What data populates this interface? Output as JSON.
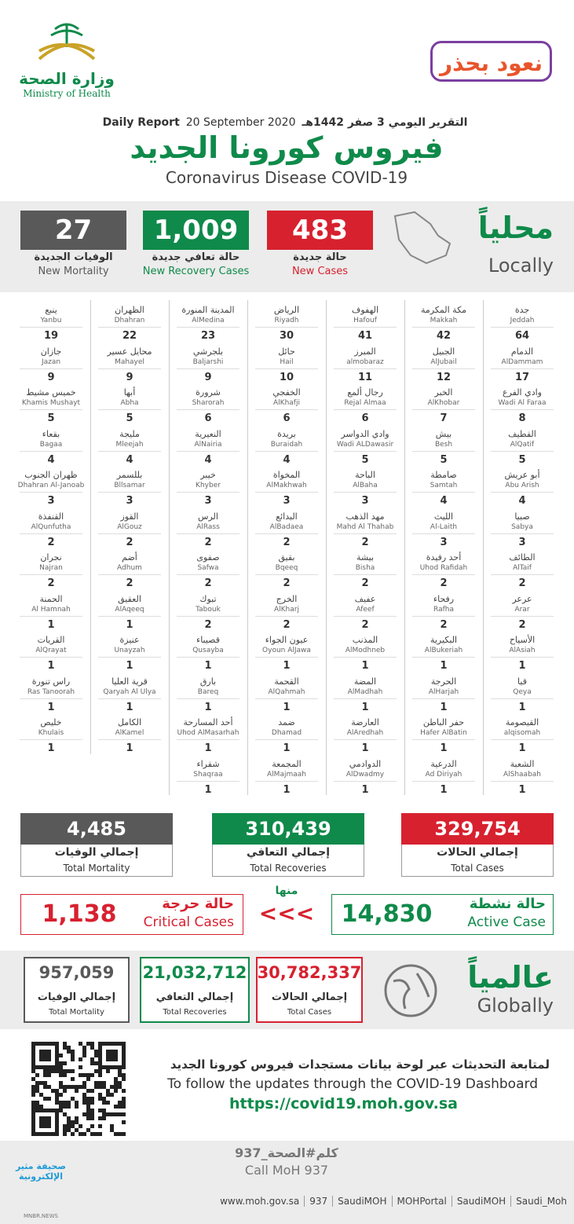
{
  "header": {
    "logo_ar": "وزارة الصحة",
    "logo_en": "Ministry of Health",
    "campaign": "نعود بحذر",
    "report_ar": "التقرير اليومي 3 صفر 1442هـ",
    "report_en": "Daily Report",
    "report_date": "20 September 2020",
    "title_ar": "فيروس كورونا الجديد",
    "title_en": "Coronavirus Disease COVID-19"
  },
  "local": {
    "label_ar": "محلياً",
    "label_en": "Locally",
    "cards": [
      {
        "value": "483",
        "label_ar": "حالة جديدة",
        "label_en": "New Cases",
        "color": "#d7212f"
      },
      {
        "value": "1,009",
        "label_ar": "حالة تعافي جديدة",
        "label_en": "New Recovery Cases",
        "color": "#0f8a4a"
      },
      {
        "value": "27",
        "label_ar": "الوفيات الجديدة",
        "label_en": "New Mortality",
        "color": "#595959"
      }
    ]
  },
  "cities": [
    [
      {
        "ar": "جدة",
        "en": "Jeddah",
        "value": 64
      },
      {
        "ar": "الدمام",
        "en": "AlDammam",
        "value": 17
      },
      {
        "ar": "وادي الفرع",
        "en": "Wadi Al Faraa",
        "value": 8
      },
      {
        "ar": "القطيف",
        "en": "AlQatif",
        "value": 5
      },
      {
        "ar": "أبو عريش",
        "en": "Abu Arish",
        "value": 4
      },
      {
        "ar": "صبيا",
        "en": "Sabya",
        "value": 3
      },
      {
        "ar": "الطائف",
        "en": "AlTaif",
        "value": 2
      },
      {
        "ar": "عرعر",
        "en": "Arar",
        "value": 2
      },
      {
        "ar": "الأسياح",
        "en": "AlAsiah",
        "value": 1
      },
      {
        "ar": "قيا",
        "en": "Qeya",
        "value": 1
      },
      {
        "ar": "القيصومة",
        "en": "alqisomah",
        "value": 1
      },
      {
        "ar": "الشعبة",
        "en": "AlShaabah",
        "value": 1
      }
    ],
    [
      {
        "ar": "مكة المكرمة",
        "en": "Makkah",
        "value": 42
      },
      {
        "ar": "الجبيل",
        "en": "AlJubail",
        "value": 12
      },
      {
        "ar": "الخبر",
        "en": "AlKhobar",
        "value": 7
      },
      {
        "ar": "بيش",
        "en": "Besh",
        "value": 5
      },
      {
        "ar": "صامطة",
        "en": "Samtah",
        "value": 4
      },
      {
        "ar": "الليث",
        "en": "Al-Laith",
        "value": 3
      },
      {
        "ar": "أحد رفيدة",
        "en": "Uhod Rafidah",
        "value": 2
      },
      {
        "ar": "رفحاء",
        "en": "Rafha",
        "value": 2
      },
      {
        "ar": "البكيرية",
        "en": "AlBukeriah",
        "value": 1
      },
      {
        "ar": "الحرجة",
        "en": "AlHarjah",
        "value": 1
      },
      {
        "ar": "حفر الباطن",
        "en": "Hafer AlBatin",
        "value": 1
      },
      {
        "ar": "الدرعية",
        "en": "Ad Diriyah",
        "value": 1
      }
    ],
    [
      {
        "ar": "الهفوف",
        "en": "Hafouf",
        "value": 41
      },
      {
        "ar": "المبرز",
        "en": "almobaraz",
        "value": 11
      },
      {
        "ar": "رجال ألمع",
        "en": "Rejal Almaa",
        "value": 6
      },
      {
        "ar": "وادي الدواسر",
        "en": "Wadi ALDawasir",
        "value": 5
      },
      {
        "ar": "الباحة",
        "en": "AlBaha",
        "value": 3
      },
      {
        "ar": "مهد الذهب",
        "en": "Mahd Al Thahab",
        "value": 2
      },
      {
        "ar": "بيشة",
        "en": "Bisha",
        "value": 2
      },
      {
        "ar": "عفيف",
        "en": "Afeef",
        "value": 2
      },
      {
        "ar": "المذنب",
        "en": "AlModhneb",
        "value": 1
      },
      {
        "ar": "المضة",
        "en": "AlMadhah",
        "value": 1
      },
      {
        "ar": "العارضة",
        "en": "AlAredhah",
        "value": 1
      },
      {
        "ar": "الدوادمي",
        "en": "AlDwadmy",
        "value": 1
      }
    ],
    [
      {
        "ar": "الرياض",
        "en": "Riyadh",
        "value": 30
      },
      {
        "ar": "حائل",
        "en": "Hail",
        "value": 10
      },
      {
        "ar": "الخفجي",
        "en": "AlKhafji",
        "value": 6
      },
      {
        "ar": "بريدة",
        "en": "Buraidah",
        "value": 4
      },
      {
        "ar": "المخواة",
        "en": "AlMakhwah",
        "value": 3
      },
      {
        "ar": "البدائع",
        "en": "AlBadaea",
        "value": 2
      },
      {
        "ar": "بقيق",
        "en": "Bqeeq",
        "value": 2
      },
      {
        "ar": "الخرج",
        "en": "AlKharj",
        "value": 2
      },
      {
        "ar": "عيون الجواء",
        "en": "Oyoun AlJawa",
        "value": 1
      },
      {
        "ar": "القحمة",
        "en": "AlQahmah",
        "value": 1
      },
      {
        "ar": "ضمد",
        "en": "Dhamad",
        "value": 1
      },
      {
        "ar": "المجمعة",
        "en": "AlMajmaah",
        "value": 1
      }
    ],
    [
      {
        "ar": "المدينة المنورة",
        "en": "AlMedina",
        "value": 23
      },
      {
        "ar": "بلجرشي",
        "en": "Baljarshi",
        "value": 9
      },
      {
        "ar": "شرورة",
        "en": "Sharorah",
        "value": 6
      },
      {
        "ar": "النعيرية",
        "en": "AlNairia",
        "value": 4
      },
      {
        "ar": "خيبر",
        "en": "Khyber",
        "value": 3
      },
      {
        "ar": "الرس",
        "en": "AlRass",
        "value": 2
      },
      {
        "ar": "صفوى",
        "en": "Safwa",
        "value": 2
      },
      {
        "ar": "تبوك",
        "en": "Tabouk",
        "value": 2
      },
      {
        "ar": "قصيباء",
        "en": "Qusayba",
        "value": 1
      },
      {
        "ar": "بارق",
        "en": "Bareq",
        "value": 1
      },
      {
        "ar": "أحد المسارحة",
        "en": "Uhod AlMasarhah",
        "value": 1
      },
      {
        "ar": "شقراء",
        "en": "Shaqraa",
        "value": 1
      }
    ],
    [
      {
        "ar": "الظهران",
        "en": "Dhahran",
        "value": 22
      },
      {
        "ar": "محايل عسير",
        "en": "Mahayel",
        "value": 9
      },
      {
        "ar": "أبها",
        "en": "Abha",
        "value": 5
      },
      {
        "ar": "مليجة",
        "en": "Mleejah",
        "value": 4
      },
      {
        "ar": "بللسمر",
        "en": "Bllsamar",
        "value": 3
      },
      {
        "ar": "القوز",
        "en": "AlGouz",
        "value": 2
      },
      {
        "ar": "أضم",
        "en": "Adhum",
        "value": 2
      },
      {
        "ar": "العقيق",
        "en": "AlAqeeq",
        "value": 1
      },
      {
        "ar": "عنيزة",
        "en": "Unayzah",
        "value": 1
      },
      {
        "ar": "قرية العليا",
        "en": "Qaryah Al Ulya",
        "value": 1
      },
      {
        "ar": "الكامل",
        "en": "AlKamel",
        "value": 1
      }
    ],
    [
      {
        "ar": "ينبع",
        "en": "Yanbu",
        "value": 19
      },
      {
        "ar": "جازان",
        "en": "Jazan",
        "value": 9
      },
      {
        "ar": "خميس مشيط",
        "en": "Khamis Mushayt",
        "value": 5
      },
      {
        "ar": "بقعاء",
        "en": "Bagaa",
        "value": 4
      },
      {
        "ar": "ظهران الجنوب",
        "en": "Dhahran Al-Janoab",
        "value": 3
      },
      {
        "ar": "القنفذة",
        "en": "AlQunfutha",
        "value": 2
      },
      {
        "ar": "نجران",
        "en": "Najran",
        "value": 2
      },
      {
        "ar": "الحمنة",
        "en": "Al Hamnah",
        "value": 1
      },
      {
        "ar": "القريات",
        "en": "AlQrayat",
        "value": 1
      },
      {
        "ar": "راس تنورة",
        "en": "Ras Tanoorah",
        "value": 1
      },
      {
        "ar": "خليص",
        "en": "Khulais",
        "value": 1
      }
    ]
  ],
  "totals": [
    {
      "value": "329,754",
      "label_ar": "إجمالي الحالات",
      "label_en": "Total Cases",
      "color": "#d7212f"
    },
    {
      "value": "310,439",
      "label_ar": "إجمالي التعافي",
      "label_en": "Total Recoveries",
      "color": "#0f8a4a"
    },
    {
      "value": "4,485",
      "label_ar": "إجمالي الوفيات",
      "label_en": "Total Mortality",
      "color": "#595959"
    }
  ],
  "active": {
    "label_ar": "حالة نشطة",
    "label_en": "Active Case",
    "value": "14,830",
    "color": "#0f8a4a"
  },
  "of_which": "منها",
  "arrows": "<<<",
  "critical": {
    "label_ar": "حالة حرجة",
    "label_en": "Critical Cases",
    "value": "1,138",
    "color": "#d7212f"
  },
  "global": {
    "label_ar": "عالمياً",
    "label_en": "Globally",
    "cards": [
      {
        "value": "30,782,337",
        "label_ar": "إجمالي الحالات",
        "label_en": "Total Cases",
        "color": "#d7212f"
      },
      {
        "value": "21,032,712",
        "label_ar": "إجمالي التعافي",
        "label_en": "Total Recoveries",
        "color": "#0f8a4a"
      },
      {
        "value": "957,059",
        "label_ar": "إجمالي الوفيات",
        "label_en": "Total Mortality",
        "color": "#595959"
      }
    ]
  },
  "footer": {
    "follow_ar": "لمتابعة التحديثات عبر لوحة بيانات مستجدات فيروس كورونا الجديد",
    "follow_en": "To follow the updates through the COVID-19 Dashboard",
    "url": "https://covid19.moh.gov.sa",
    "call_ar": "كلم#الصحة_937",
    "call_en": "Call MoH 937",
    "links": [
      "www.moh.gov.sa",
      "937",
      "SaudiMOH",
      "MOHPortal",
      "SaudiMOH",
      "Saudi_Moh"
    ],
    "watermark_ar": "صحيفة مثير الإلكترونية",
    "watermark_en": "MNBR.NEWS"
  }
}
